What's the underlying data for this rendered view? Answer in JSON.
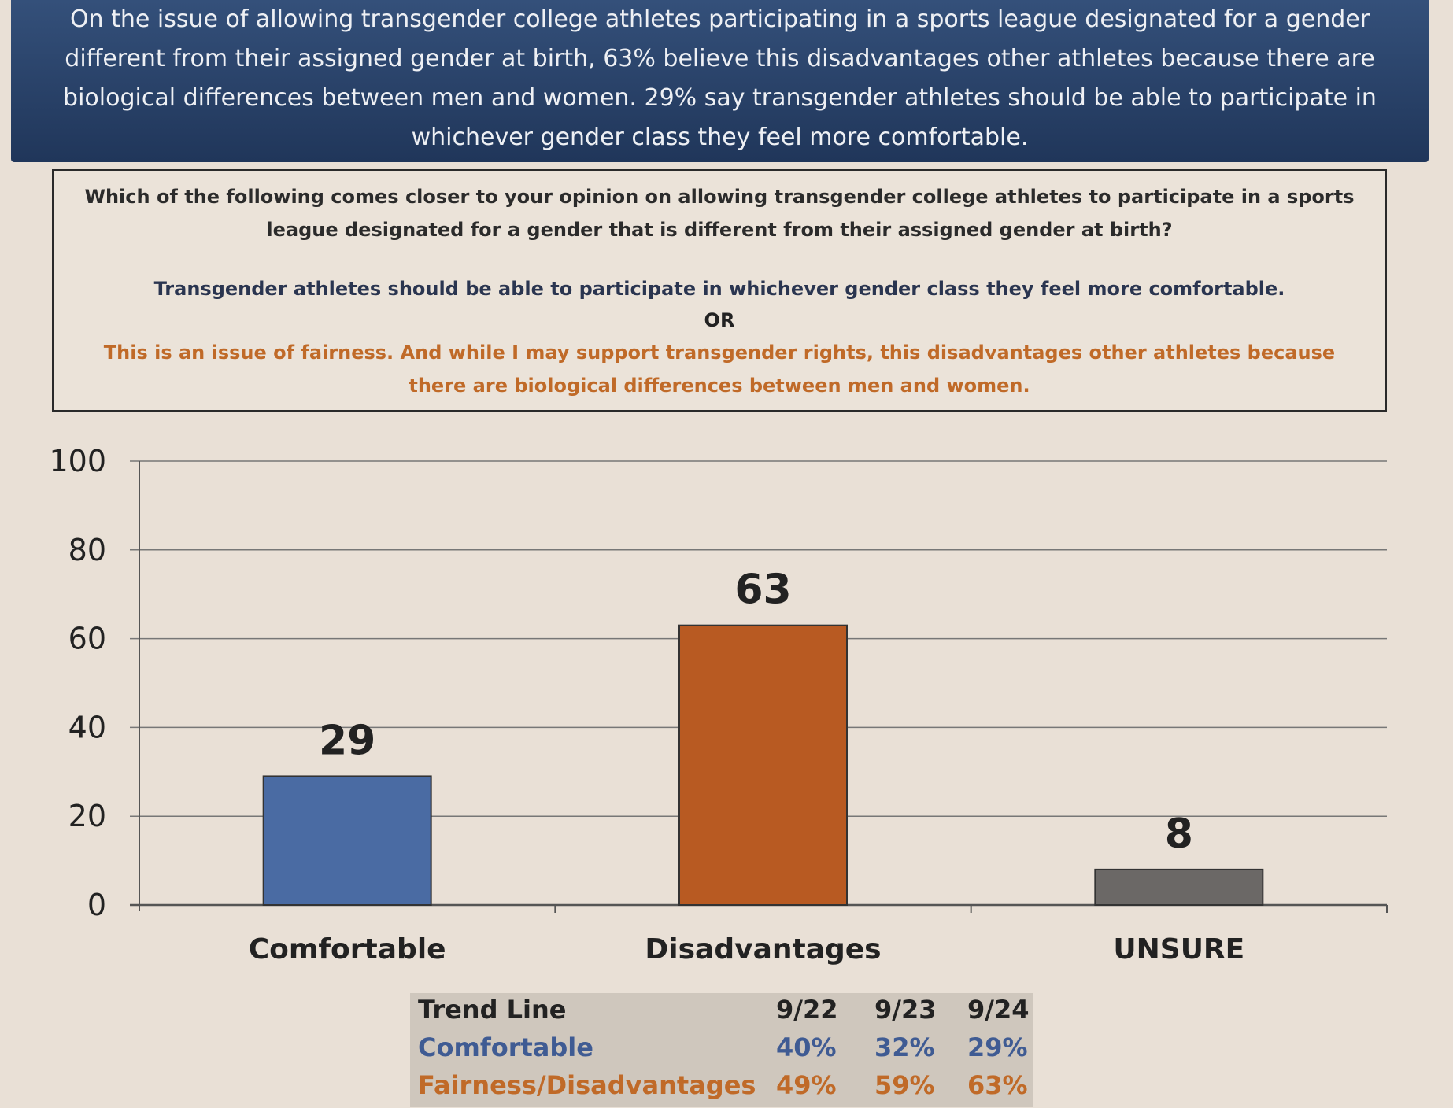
{
  "banner": {
    "text": "On the issue of allowing transgender college athletes participating in a sports league designated for a gender different from their assigned gender at birth, 63% believe this disadvantages other athletes because there are biological differences between men and women. 29% say transgender athletes should be able to participate in whichever gender class they feel more comfortable."
  },
  "question": {
    "text": "Which of the following comes closer to your opinion on allowing transgender college athletes to participate in a sports league designated for a gender that is different from their assigned gender at birth?",
    "option1": "Transgender athletes should be able to participate in whichever gender class they feel more comfortable.",
    "or": "OR",
    "option2": "This is an issue of fairness. And while I may support transgender rights, this disadvantages other athletes because there are biological differences between men and women."
  },
  "chart_data": {
    "type": "bar",
    "categories": [
      "Comfortable",
      "Disadvantages",
      "UNSURE"
    ],
    "values": [
      29,
      63,
      8
    ],
    "colors": [
      "#4a6ba3",
      "#b85a22",
      "#6b6866"
    ],
    "ylim": [
      0,
      100
    ],
    "yticks": [
      0,
      20,
      40,
      60,
      80,
      100
    ],
    "grid": true,
    "title": "",
    "xlabel": "",
    "ylabel": ""
  },
  "trend": {
    "header": [
      "Trend Line",
      "9/22",
      "9/23",
      "9/24"
    ],
    "rows": [
      [
        "Comfortable",
        "40%",
        "32%",
        "29%"
      ],
      [
        "Fairness/Disadvantages",
        "49%",
        "59%",
        "63%"
      ]
    ]
  }
}
